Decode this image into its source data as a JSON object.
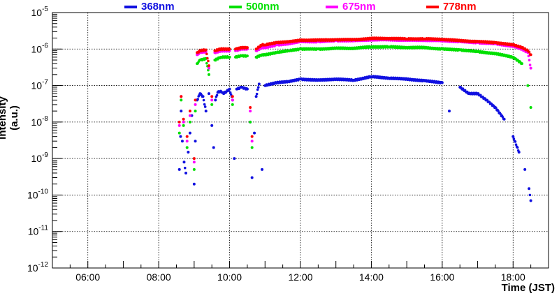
{
  "chart_data": {
    "type": "scatter",
    "title": "",
    "xlabel": "Time (JST)",
    "ylabel": "Intensity (a.u.)",
    "x_scale": "time",
    "y_scale": "log",
    "xlim": [
      "05:00",
      "19:00"
    ],
    "ylim": [
      1e-12,
      1e-05
    ],
    "grid": true,
    "legend_position": "top",
    "x_ticks": [
      "06:00",
      "08:00",
      "10:00",
      "12:00",
      "14:00",
      "16:00",
      "18:00"
    ],
    "y_ticks": [
      {
        "mantissa": "10",
        "exponent": "-12"
      },
      {
        "mantissa": "10",
        "exponent": "-11"
      },
      {
        "mantissa": "10",
        "exponent": "-10"
      },
      {
        "mantissa": "10",
        "exponent": "-9"
      },
      {
        "mantissa": "10",
        "exponent": "-8"
      },
      {
        "mantissa": "10",
        "exponent": "-7"
      },
      {
        "mantissa": "10",
        "exponent": "-6"
      },
      {
        "mantissa": "10",
        "exponent": "-5"
      }
    ],
    "series": [
      {
        "name": "368nm",
        "color": "#1010e0",
        "points": [
          [
            "08:35",
            5e-10
          ],
          [
            "08:37",
            4e-09
          ],
          [
            "08:38",
            2e-08
          ],
          [
            "08:40",
            3e-09
          ],
          [
            "08:43",
            8e-10
          ],
          [
            "08:46",
            4e-10
          ],
          [
            "08:50",
            1.5e-09
          ],
          [
            "08:53",
            5e-09
          ],
          [
            "08:56",
            1.5e-08
          ],
          [
            "09:00",
            2e-10
          ],
          [
            "09:02",
            3e-09
          ],
          [
            "09:05",
            4e-08
          ],
          [
            "09:10",
            6e-08
          ],
          [
            "09:15",
            5e-08
          ],
          [
            "09:20",
            2e-08
          ],
          [
            "09:25",
            6e-08
          ],
          [
            "09:30",
            8e-09
          ],
          [
            "09:33",
            2e-09
          ],
          [
            "09:36",
            4e-08
          ],
          [
            "09:40",
            6.5e-08
          ],
          [
            "09:45",
            7e-08
          ],
          [
            "09:50",
            6e-08
          ],
          [
            "10:00",
            8e-08
          ],
          [
            "10:05",
            4e-08
          ],
          [
            "10:08",
            1e-09
          ],
          [
            "10:12",
            8e-08
          ],
          [
            "10:20",
            9e-08
          ],
          [
            "10:30",
            8e-08
          ],
          [
            "10:35",
            1e-08
          ],
          [
            "10:38",
            3e-10
          ],
          [
            "10:42",
            5e-09
          ],
          [
            "10:45",
            5e-08
          ],
          [
            "10:50",
            1.1e-07
          ],
          [
            "10:55",
            5e-10
          ],
          [
            "11:00",
            1e-07
          ],
          [
            "11:20",
            1.2e-07
          ],
          [
            "11:40",
            1.3e-07
          ],
          [
            "12:00",
            1.5e-07
          ],
          [
            "12:30",
            1.4e-07
          ],
          [
            "13:00",
            1.5e-07
          ],
          [
            "13:30",
            1.4e-07
          ],
          [
            "14:00",
            1.75e-07
          ],
          [
            "14:30",
            1.6e-07
          ],
          [
            "15:00",
            1.5e-07
          ],
          [
            "15:30",
            1.35e-07
          ],
          [
            "16:00",
            1.2e-07
          ],
          [
            "16:12",
            2e-08
          ],
          [
            "16:30",
            9e-08
          ],
          [
            "16:45",
            6e-08
          ],
          [
            "17:00",
            6e-08
          ],
          [
            "17:15",
            4e-08
          ],
          [
            "17:30",
            2.5e-08
          ],
          [
            "17:45",
            1.2e-08
          ],
          [
            "18:00",
            4e-09
          ],
          [
            "18:10",
            1.5e-09
          ],
          [
            "18:20",
            5e-10
          ],
          [
            "18:27",
            1.5e-10
          ],
          [
            "18:30",
            7e-11
          ]
        ]
      },
      {
        "name": "500nm",
        "color": "#00e000",
        "points": [
          [
            "08:35",
            5e-09
          ],
          [
            "08:38",
            4e-08
          ],
          [
            "08:42",
            8e-09
          ],
          [
            "08:48",
            2e-09
          ],
          [
            "08:53",
            1e-08
          ],
          [
            "09:00",
            5e-10
          ],
          [
            "09:02",
            2e-08
          ],
          [
            "09:05",
            4e-07
          ],
          [
            "09:10",
            5e-07
          ],
          [
            "09:20",
            5.5e-07
          ],
          [
            "09:25",
            2e-07
          ],
          [
            "09:30",
            3e-08
          ],
          [
            "09:35",
            5e-07
          ],
          [
            "09:45",
            6e-07
          ],
          [
            "10:00",
            6e-07
          ],
          [
            "10:05",
            3e-08
          ],
          [
            "10:10",
            6e-07
          ],
          [
            "10:20",
            6.5e-07
          ],
          [
            "10:30",
            6.5e-07
          ],
          [
            "10:35",
            1e-08
          ],
          [
            "10:38",
            2e-09
          ],
          [
            "10:45",
            6e-07
          ],
          [
            "10:55",
            7e-07
          ],
          [
            "11:00",
            7e-07
          ],
          [
            "11:20",
            8e-07
          ],
          [
            "11:40",
            9e-07
          ],
          [
            "12:00",
            1e-06
          ],
          [
            "12:30",
            1e-06
          ],
          [
            "13:00",
            1.05e-06
          ],
          [
            "13:30",
            1.05e-06
          ],
          [
            "14:00",
            1.15e-06
          ],
          [
            "14:30",
            1.15e-06
          ],
          [
            "15:00",
            1.1e-06
          ],
          [
            "15:30",
            1.1e-06
          ],
          [
            "16:00",
            1e-06
          ],
          [
            "16:30",
            9.5e-07
          ],
          [
            "17:00",
            8.5e-07
          ],
          [
            "17:30",
            7.5e-07
          ],
          [
            "18:00",
            6e-07
          ],
          [
            "18:15",
            4e-07
          ],
          [
            "18:25",
            1e-07
          ],
          [
            "18:30",
            2.5e-08
          ]
        ]
      },
      {
        "name": "675nm",
        "color": "#ff00ff",
        "points": [
          [
            "08:35",
            8e-09
          ],
          [
            "08:38",
            5e-08
          ],
          [
            "08:42",
            1e-08
          ],
          [
            "08:48",
            3e-09
          ],
          [
            "08:53",
            1.5e-08
          ],
          [
            "09:00",
            8e-10
          ],
          [
            "09:02",
            3e-08
          ],
          [
            "09:05",
            7e-07
          ],
          [
            "09:10",
            8e-07
          ],
          [
            "09:20",
            8.5e-07
          ],
          [
            "09:25",
            3e-07
          ],
          [
            "09:30",
            4e-08
          ],
          [
            "09:35",
            8e-07
          ],
          [
            "09:45",
            9e-07
          ],
          [
            "10:00",
            9e-07
          ],
          [
            "10:05",
            4e-08
          ],
          [
            "10:10",
            9e-07
          ],
          [
            "10:20",
            1e-06
          ],
          [
            "10:30",
            1e-06
          ],
          [
            "10:35",
            2e-08
          ],
          [
            "10:38",
            3e-09
          ],
          [
            "10:45",
            9e-07
          ],
          [
            "10:55",
            1.1e-06
          ],
          [
            "11:00",
            1.1e-06
          ],
          [
            "11:20",
            1.3e-06
          ],
          [
            "11:40",
            1.4e-06
          ],
          [
            "12:00",
            1.6e-06
          ],
          [
            "12:30",
            1.6e-06
          ],
          [
            "13:00",
            1.7e-06
          ],
          [
            "13:30",
            1.7e-06
          ],
          [
            "14:00",
            1.8e-06
          ],
          [
            "14:30",
            1.8e-06
          ],
          [
            "15:00",
            1.75e-06
          ],
          [
            "15:30",
            1.75e-06
          ],
          [
            "16:00",
            1.7e-06
          ],
          [
            "16:30",
            1.6e-06
          ],
          [
            "17:00",
            1.5e-06
          ],
          [
            "17:30",
            1.4e-06
          ],
          [
            "18:00",
            1.2e-06
          ],
          [
            "18:15",
            1e-06
          ],
          [
            "18:25",
            8e-07
          ],
          [
            "18:30",
            3e-07
          ]
        ]
      },
      {
        "name": "778nm",
        "color": "#ff0000",
        "points": [
          [
            "08:35",
            1e-08
          ],
          [
            "08:38",
            5e-08
          ],
          [
            "08:42",
            1.2e-08
          ],
          [
            "08:48",
            4e-09
          ],
          [
            "08:53",
            2e-08
          ],
          [
            "09:00",
            1e-09
          ],
          [
            "09:02",
            4e-08
          ],
          [
            "09:05",
            8e-07
          ],
          [
            "09:10",
            9e-07
          ],
          [
            "09:20",
            9.5e-07
          ],
          [
            "09:25",
            3.5e-07
          ],
          [
            "09:30",
            5e-08
          ],
          [
            "09:35",
            9e-07
          ],
          [
            "09:45",
            1e-06
          ],
          [
            "10:00",
            1e-06
          ],
          [
            "10:05",
            5e-08
          ],
          [
            "10:10",
            1e-06
          ],
          [
            "10:20",
            1.1e-06
          ],
          [
            "10:30",
            1.1e-06
          ],
          [
            "10:35",
            2.5e-08
          ],
          [
            "10:38",
            4e-09
          ],
          [
            "10:45",
            1e-06
          ],
          [
            "10:55",
            1.3e-06
          ],
          [
            "11:00",
            1.3e-06
          ],
          [
            "11:20",
            1.5e-06
          ],
          [
            "11:40",
            1.6e-06
          ],
          [
            "12:00",
            1.75e-06
          ],
          [
            "12:30",
            1.75e-06
          ],
          [
            "13:00",
            1.8e-06
          ],
          [
            "13:30",
            1.8e-06
          ],
          [
            "14:00",
            1.95e-06
          ],
          [
            "14:30",
            1.95e-06
          ],
          [
            "15:00",
            1.9e-06
          ],
          [
            "15:30",
            1.9e-06
          ],
          [
            "16:00",
            1.85e-06
          ],
          [
            "16:30",
            1.7e-06
          ],
          [
            "17:00",
            1.6e-06
          ],
          [
            "17:30",
            1.5e-06
          ],
          [
            "18:00",
            1.3e-06
          ],
          [
            "18:15",
            1.1e-06
          ],
          [
            "18:25",
            9e-07
          ],
          [
            "18:30",
            7e-07
          ]
        ]
      }
    ]
  }
}
